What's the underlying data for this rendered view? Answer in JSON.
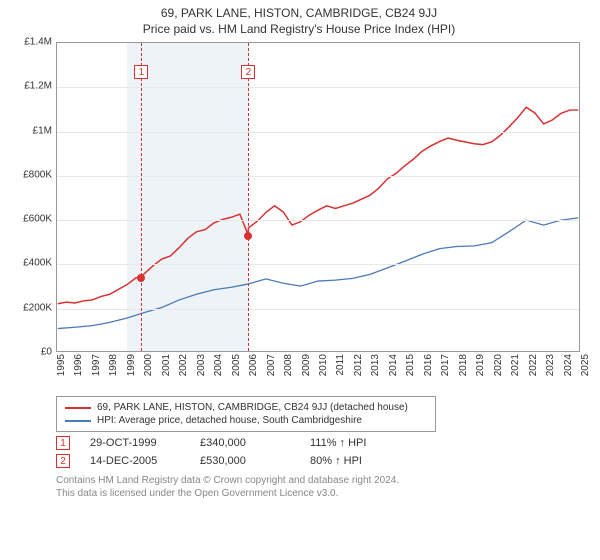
{
  "title": {
    "main": "69, PARK LANE, HISTON, CAMBRIDGE, CB24 9JJ",
    "sub": "Price paid vs. HM Land Registry's House Price Index (HPI)"
  },
  "chart": {
    "type": "line",
    "background_color": "#ffffff",
    "grid_color": "#e8e8e8",
    "border_color": "#999999",
    "xlim": [
      1995,
      2025
    ],
    "ylim": [
      0,
      1400000
    ],
    "ytick_step": 200000,
    "ytick_labels": [
      "£0",
      "£200K",
      "£400K",
      "£600K",
      "£800K",
      "£1M",
      "£1.2M",
      "£1.4M"
    ],
    "xtick_step": 1,
    "xtick_labels": [
      "1995",
      "1996",
      "1997",
      "1998",
      "1999",
      "2000",
      "2001",
      "2002",
      "2003",
      "2004",
      "2005",
      "2006",
      "2007",
      "2008",
      "2009",
      "2010",
      "2011",
      "2012",
      "2013",
      "2014",
      "2015",
      "2016",
      "2017",
      "2018",
      "2019",
      "2020",
      "2021",
      "2022",
      "2023",
      "2024",
      "2025"
    ],
    "shaded_range": {
      "x0": 1999,
      "x1": 2006,
      "color": "#eef3f8"
    },
    "label_fontsize": 10,
    "title_fontsize": 12,
    "series": [
      {
        "name": "property",
        "label": "69, PARK LANE, HISTON, CAMBRIDGE, CB24 9JJ (detached house)",
        "color": "#d93030",
        "line_width": 1.5,
        "data": [
          [
            1995,
            215000
          ],
          [
            1995.5,
            222000
          ],
          [
            1996,
            218000
          ],
          [
            1996.5,
            228000
          ],
          [
            1997,
            232000
          ],
          [
            1997.5,
            248000
          ],
          [
            1998,
            258000
          ],
          [
            1998.5,
            280000
          ],
          [
            1999,
            302000
          ],
          [
            1999.5,
            332000
          ],
          [
            1999.83,
            340000
          ],
          [
            2000,
            352000
          ],
          [
            2000.5,
            388000
          ],
          [
            2001,
            418000
          ],
          [
            2001.5,
            432000
          ],
          [
            2002,
            470000
          ],
          [
            2002.5,
            512000
          ],
          [
            2003,
            542000
          ],
          [
            2003.5,
            552000
          ],
          [
            2004,
            582000
          ],
          [
            2004.5,
            598000
          ],
          [
            2005,
            608000
          ],
          [
            2005.5,
            622000
          ],
          [
            2005.96,
            530000
          ],
          [
            2006,
            560000
          ],
          [
            2006.5,
            590000
          ],
          [
            2007,
            630000
          ],
          [
            2007.5,
            660000
          ],
          [
            2008,
            632000
          ],
          [
            2008.5,
            572000
          ],
          [
            2009,
            588000
          ],
          [
            2009.5,
            618000
          ],
          [
            2010,
            640000
          ],
          [
            2010.5,
            660000
          ],
          [
            2011,
            648000
          ],
          [
            2011.5,
            660000
          ],
          [
            2012,
            672000
          ],
          [
            2012.5,
            690000
          ],
          [
            2013,
            708000
          ],
          [
            2013.5,
            740000
          ],
          [
            2014,
            782000
          ],
          [
            2014.5,
            808000
          ],
          [
            2015,
            842000
          ],
          [
            2015.5,
            872000
          ],
          [
            2016,
            908000
          ],
          [
            2016.5,
            932000
          ],
          [
            2017,
            952000
          ],
          [
            2017.5,
            968000
          ],
          [
            2018,
            958000
          ],
          [
            2018.5,
            950000
          ],
          [
            2019,
            942000
          ],
          [
            2019.5,
            938000
          ],
          [
            2020,
            950000
          ],
          [
            2020.5,
            980000
          ],
          [
            2021,
            1018000
          ],
          [
            2021.5,
            1060000
          ],
          [
            2022,
            1108000
          ],
          [
            2022.5,
            1082000
          ],
          [
            2023,
            1032000
          ],
          [
            2023.5,
            1050000
          ],
          [
            2024,
            1080000
          ],
          [
            2024.5,
            1095000
          ],
          [
            2025,
            1095000
          ]
        ]
      },
      {
        "name": "hpi",
        "label": "HPI: Average price, detached house, South Cambridgeshire",
        "color": "#4a7ab8",
        "line_width": 1.3,
        "data": [
          [
            1995,
            102000
          ],
          [
            1996,
            108000
          ],
          [
            1997,
            115000
          ],
          [
            1998,
            130000
          ],
          [
            1999,
            150000
          ],
          [
            2000,
            175000
          ],
          [
            2001,
            198000
          ],
          [
            2002,
            232000
          ],
          [
            2003,
            258000
          ],
          [
            2004,
            278000
          ],
          [
            2005,
            290000
          ],
          [
            2006,
            305000
          ],
          [
            2007,
            328000
          ],
          [
            2008,
            308000
          ],
          [
            2009,
            295000
          ],
          [
            2010,
            318000
          ],
          [
            2011,
            322000
          ],
          [
            2012,
            330000
          ],
          [
            2013,
            348000
          ],
          [
            2014,
            378000
          ],
          [
            2015,
            408000
          ],
          [
            2016,
            440000
          ],
          [
            2017,
            465000
          ],
          [
            2018,
            475000
          ],
          [
            2019,
            478000
          ],
          [
            2020,
            492000
          ],
          [
            2021,
            542000
          ],
          [
            2022,
            595000
          ],
          [
            2023,
            572000
          ],
          [
            2024,
            595000
          ],
          [
            2025,
            605000
          ]
        ]
      }
    ],
    "markers": [
      {
        "n": "1",
        "x": 1999.83,
        "y": 340000,
        "color": "#d93030"
      },
      {
        "n": "2",
        "x": 2005.96,
        "y": 530000,
        "color": "#d93030"
      }
    ]
  },
  "sales": [
    {
      "n": "1",
      "date": "29-OCT-1999",
      "price": "£340,000",
      "pct": "111% ↑ HPI"
    },
    {
      "n": "2",
      "date": "14-DEC-2005",
      "price": "£530,000",
      "pct": "80% ↑ HPI"
    }
  ],
  "attribution": {
    "line1": "Contains HM Land Registry data © Crown copyright and database right 2024.",
    "line2": "This data is licensed under the Open Government Licence v3.0."
  },
  "colors": {
    "marker_border": "#d93030",
    "text": "#333333",
    "muted": "#888888"
  }
}
